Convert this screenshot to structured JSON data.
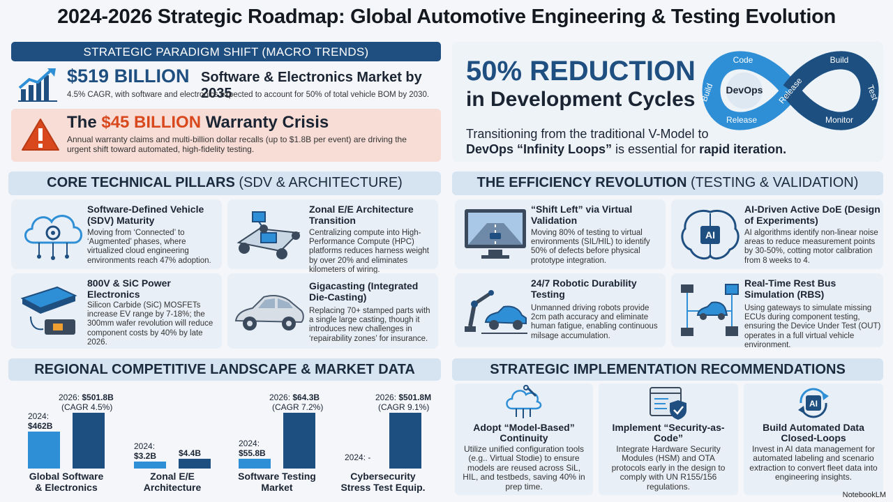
{
  "title": "2024-2026 Strategic Roadmap: Global Automotive Engineering & Testing Evolution",
  "macro": {
    "header": "STRATEGIC PARADIGM SHIFT (MACRO TRENDS)",
    "market_big": "$519 BILLION",
    "market_rest": "Software & Electronics Market by 2035",
    "market_sub": "4.5% CAGR, with software and electronics expected to account for 50% of total vehicle BOM by 2030.",
    "warranty_pre": "The ",
    "warranty_big": "$45 BILLION",
    "warranty_post": " Warranty Crisis",
    "warranty_text": "Annual warranty claims and multi-billion dollar recalls (up to $1.8B per event) are driving the urgent shift toward automated, high-fidelity testing."
  },
  "devops": {
    "big": "50% REDUCTION",
    "big2": "in Development Cycles",
    "line1": "Transitioning from the traditional V-Model to",
    "line2_bold": "DevOps “Infinity Loops”",
    "line2_mid": " is essential for ",
    "line2_bold2": "rapid iteration.",
    "loop_labels": {
      "center": "DevOps",
      "code": "Code",
      "build_left": "Build",
      "release_left": "Release",
      "release_mid": "Release",
      "build_right": "Build",
      "test": "Test",
      "monitor": "Monitor"
    }
  },
  "pillars": {
    "header_bold": "CORE TECHNICAL PILLARS",
    "header_rest": " (SDV & ARCHITECTURE)",
    "items": [
      {
        "title": "Software-Defined Vehicle (SDV) Maturity",
        "text": "Moving from ‘Connected’ to ‘Augmented’ phases, where virtualized cloud engineering environments reach 47% adoption."
      },
      {
        "title": "Zonal E/E Architecture Transition",
        "text": "Centralizing compute into High-Performance Compute (HPC) platforms reduces harness weight by over 20% and eliminates kilometers of wiring."
      },
      {
        "title": "800V & SiC Power Electronics",
        "text": "Silicon Carbide (SiC) MOSFETs increase EV range by 7-18%; the 300mm wafer revolution will reduce component costs by 40% by late 2026."
      },
      {
        "title": "Gigacasting (Integrated Die-Casting)",
        "text": "Replacing 70+ stamped parts with a single large casting, though it introduces new challenges in ‘repairability zones’ for insurance."
      }
    ]
  },
  "efficiency": {
    "header_bold": "THE EFFICIENCY REVOLUTION",
    "header_rest": " (TESTING & VALIDATION)",
    "items": [
      {
        "title": "“Shift Left” via Virtual Validation",
        "text": "Moving 80% of testing to virtual environments (SIL/HIL) to identify 50% of defects before physical prototype integration."
      },
      {
        "title": "AI-Driven Active DoE (Design of Experiments)",
        "text": "AI algorithms identify non-linear noise areas to reduce measurement points by 30-50%, cotting motor calibration from 8 weeks to 4."
      },
      {
        "title": "24/7 Robotic Durability Testing",
        "text": "Unmanned driving robots provide 2cm path accuracy and eliminate human fatigue, enabling continuous milsage accumulation."
      },
      {
        "title": "Real-Time Rest Bus Simulation (RBS)",
        "text": "Using gateways to simulate missing ECUs during component testing, ensuring the Device Under Test (OUT) operates in a full virtual vehicle environment."
      }
    ]
  },
  "regional": {
    "header": "REGIONAL COMPETITIVE LANDSCAPE & MARKET DATA"
  },
  "chart_data": {
    "type": "bar",
    "categories": [
      "Global Software & Electronics",
      "Zonal E/E Architecture",
      "Software Testing Market",
      "Cybersecurity Stress Test Equip."
    ],
    "series": [
      {
        "name": "2024",
        "values": [
          462,
          3.2,
          55.8,
          null
        ],
        "labels": [
          "2024:",
          "2024:",
          "2024:",
          "2024: -"
        ],
        "value_labels": [
          "$462B",
          "$3.2B",
          "$55.8B",
          ""
        ]
      },
      {
        "name": "2026",
        "values": [
          501.8,
          4.4,
          64.3,
          501.8
        ],
        "labels": [
          "2026: ",
          "",
          "2026: ",
          "2026: "
        ],
        "value_labels": [
          "$501.8B",
          "$4.4B",
          "$64.3B",
          "$501.8M"
        ],
        "cagr": [
          "(CAGR 4.5%)",
          "",
          "(CAGR 7.2%)",
          "(CAGR 9.1%)"
        ]
      }
    ],
    "colors": {
      "2024": "#2f8fd6",
      "2026": "#1d4f80"
    }
  },
  "recommendations": {
    "header": "STRATEGIC IMPLEMENTATION RECOMMENDATIONS",
    "items": [
      {
        "title": "Adopt “Model-Based” Continuity",
        "text": "Utilize unified configuration tools (e.g.. Virtual Stodie) to ensure models are reused across SiL, HIL, and testbeds, saving 40% in prep time."
      },
      {
        "title": "Implement “Security-as-Code”",
        "text": "Integrate Hardware Security Modules (HSM) and OTA protocols early in the design to comply with UN R155/156 regulations."
      },
      {
        "title": "Build Automated Data Closed-Loops",
        "text": "Invest in AI data management for automated labeling and scenario extraction to convert fleet data into engineering insights."
      }
    ],
    "ai_badge": "AI"
  },
  "brand": "NotebookLM",
  "colors": {
    "navy": "#1f4f80",
    "accent_red": "#d9481d",
    "panel": "#e9eff6",
    "header_bg": "#d6e4f1"
  }
}
